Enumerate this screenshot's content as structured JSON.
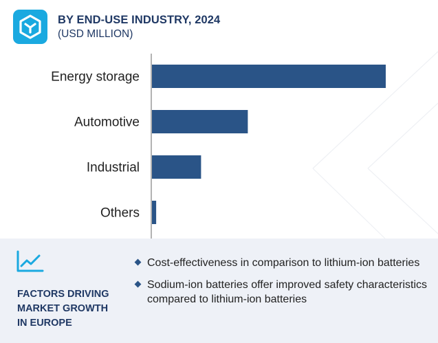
{
  "header": {
    "title": "BY END-USE INDUSTRY, 2024",
    "subtitle": "(USD MILLION)"
  },
  "colors": {
    "bar": "#2a5487",
    "logo": "#1aa9e0",
    "heading": "#1f3864",
    "panel": "#eef1f7"
  },
  "chart_data": {
    "type": "bar",
    "orientation": "horizontal",
    "categories": [
      "Energy storage",
      "Automotive",
      "Industrial",
      "Others"
    ],
    "values": [
      100,
      41,
      21,
      1.8
    ],
    "value_axis_shown": false,
    "grid": false
  },
  "factors": {
    "icon": "trend-line-icon",
    "heading_lines": [
      "FACTORS DRIVING",
      "MARKET GROWTH",
      "IN EUROPE"
    ],
    "bullets": [
      "Cost-effectiveness in comparison to lithium-ion batteries",
      "Sodium-ion batteries offer improved safety characteristics compared to lithium-ion batteries"
    ]
  }
}
